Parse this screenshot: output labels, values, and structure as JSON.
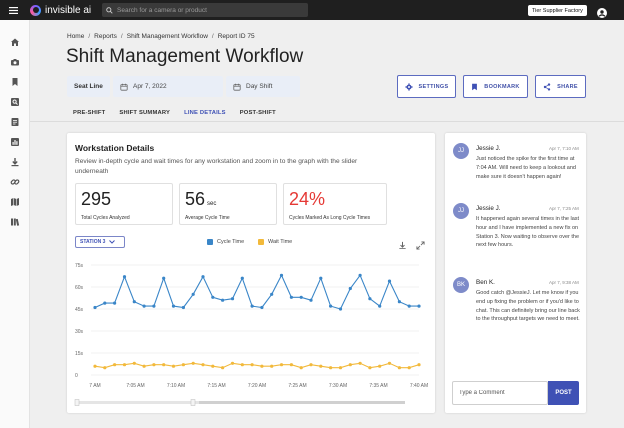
{
  "app": {
    "brand": "invisible ai"
  },
  "search": {
    "placeholder": "Search for a camera or product"
  },
  "header": {
    "factory": "Tier Supplier Factory"
  },
  "breadcrumb": [
    "Home",
    "Reports",
    "Shift Management Workflow",
    "Report ID 75"
  ],
  "page": {
    "title": "Shift Management Workflow"
  },
  "filters": {
    "line": "Seat Line",
    "date": "Apr 7, 2022",
    "shift": "Day Shift"
  },
  "actions": {
    "settings": "SETTINGS",
    "bookmark": "BOOKMARK",
    "share": "SHARE"
  },
  "tabs": [
    {
      "label": "PRE-SHIFT",
      "active": false
    },
    {
      "label": "SHIFT SUMMARY",
      "active": false
    },
    {
      "label": "LINE DETAILS",
      "active": true
    },
    {
      "label": "POST-SHIFT",
      "active": false
    }
  ],
  "workstation": {
    "title": "Workstation Details",
    "description": "Review in-depth cycle and wait times for any workstation and zoom in to the graph with the slider underneath",
    "stats": [
      {
        "value": "295",
        "unit": "",
        "caption": "Total Cycles Analyzed",
        "color": "#222222"
      },
      {
        "value": "56",
        "unit": "sec",
        "caption": "Average Cycle Time",
        "color": "#222222"
      },
      {
        "value": "24%",
        "unit": "",
        "caption": "Cycles Marked As Long Cycle Times",
        "color": "#e53935"
      }
    ],
    "station": "STATION 3"
  },
  "chart_data": {
    "type": "line",
    "legend": [
      "Cycle Time",
      "Wait Time"
    ],
    "colors": {
      "cycle": "#3a86c8",
      "wait": "#f2b93b"
    },
    "y_ticks": [
      "75s",
      "60s",
      "45s",
      "30s",
      "15s",
      "0"
    ],
    "ylim": [
      0,
      75
    ],
    "x_ticks": [
      "7 AM",
      "7:05 AM",
      "7:10 AM",
      "7:15 AM",
      "7:20 AM",
      "7:25 AM",
      "7:30 AM",
      "7:35 AM",
      "7:40 AM"
    ],
    "series": [
      {
        "name": "Cycle Time",
        "values": [
          46,
          49,
          49,
          67,
          50,
          47,
          47,
          66,
          47,
          46,
          55,
          67,
          53,
          51,
          52,
          66,
          47,
          46,
          55,
          68,
          53,
          53,
          51,
          66,
          47,
          45,
          59,
          68,
          52,
          47,
          64,
          50,
          47,
          47
        ]
      },
      {
        "name": "Wait Time",
        "values": [
          6,
          5,
          7,
          7,
          8,
          6,
          7,
          7,
          6,
          7,
          8,
          7,
          6,
          5,
          8,
          7,
          7,
          6,
          6,
          7,
          7,
          5,
          7,
          6,
          5,
          5,
          7,
          8,
          5,
          6,
          8,
          5,
          5,
          7
        ]
      }
    ]
  },
  "chat": [
    {
      "initials": "JJ",
      "name": "Jessie J.",
      "time": "Apr 7, 7:10 AM",
      "text": "Just noticed the spike for the first time at 7:04 AM. Will need to keep a lookout and make sure it doesn't happen again!"
    },
    {
      "initials": "JJ",
      "name": "Jessie J.",
      "time": "Apr 7, 7:25 AM",
      "text": "It happened again several times in the last hour and I have implemented a new fix on Station 3. Now waiting to observe over the next few hours."
    },
    {
      "initials": "BK",
      "name": "Ben K.",
      "time": "Apr 7, 9:38 AM",
      "text": "Good catch @JessieJ. Let me know if you end up fixing the problem or if you'd like to chat. This can definitely bring our line back to the throughput targets we need to meet."
    }
  ],
  "comment": {
    "placeholder": "Type a Comment",
    "post": "POST"
  }
}
